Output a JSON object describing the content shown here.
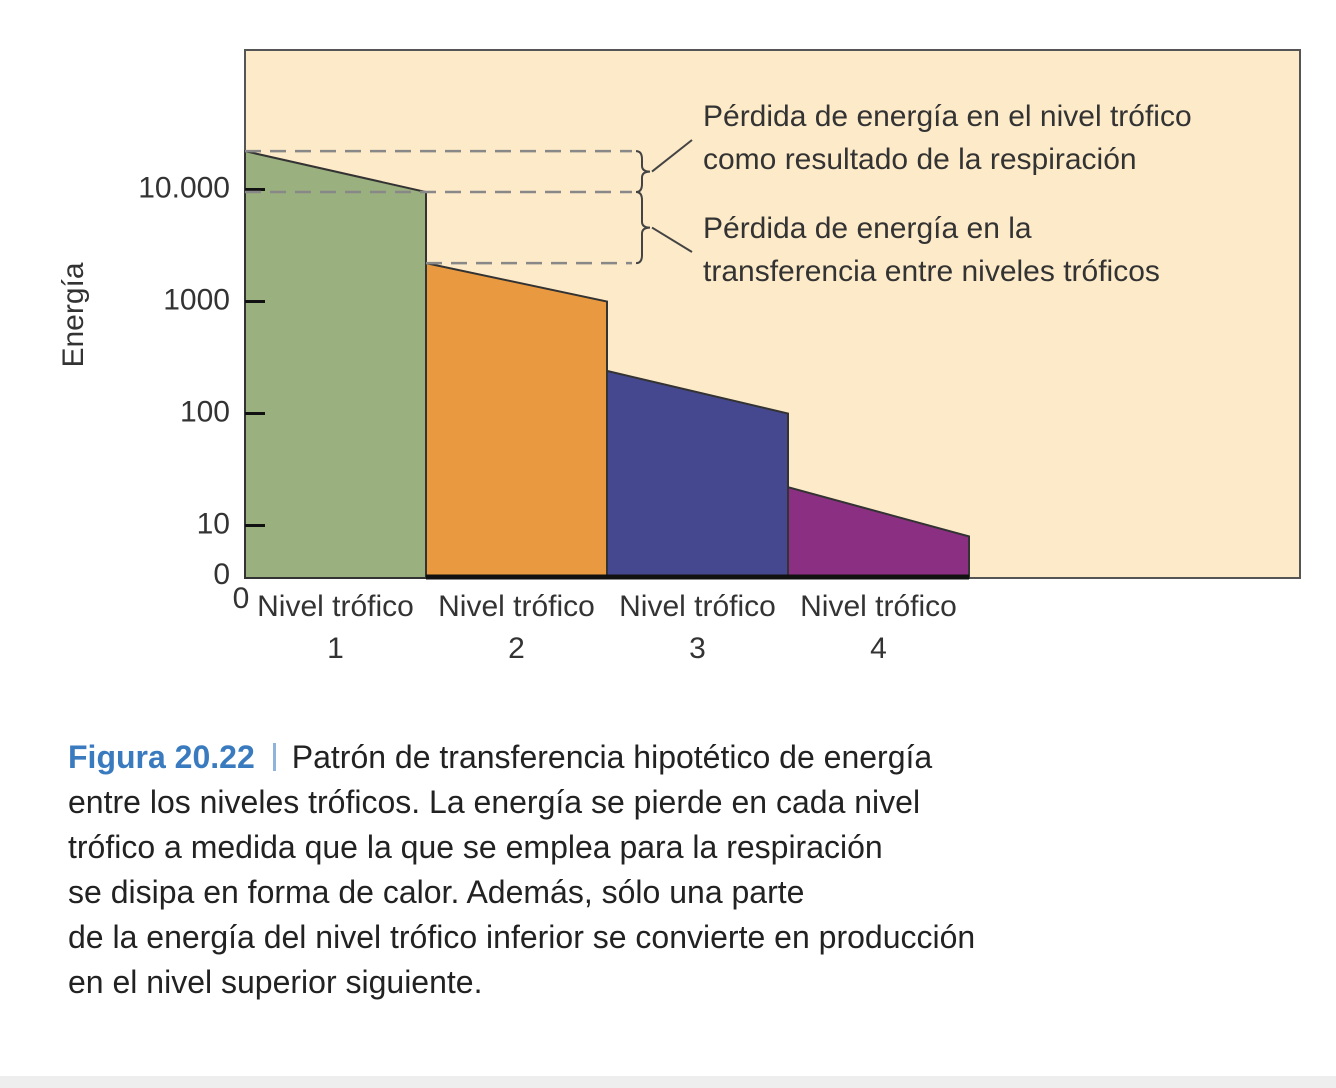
{
  "chart_data": {
    "type": "area-steps",
    "y_label": "Energía",
    "categories": [
      "Nivel trófico 1",
      "Nivel trófico 2",
      "Nivel trófico 3",
      "Nivel trófico 4"
    ],
    "start_values": [
      22000,
      2200,
      240,
      22
    ],
    "end_values": [
      9500,
      1000,
      100,
      8
    ],
    "colors": [
      "#9bb07f",
      "#e99a40",
      "#45478f",
      "#8b2f82"
    ],
    "log_scale": true,
    "ylim": [
      3.4,
      176000
    ],
    "yticks": [
      0,
      10,
      100,
      1000,
      {
        "value": 10000,
        "label": "10.000"
      }
    ],
    "xticks": [
      0
    ],
    "annotations": [
      [
        "Pérdida de energía en el nivel trófico",
        "como resultado de la respiración"
      ],
      [
        "Pérdida de energía en la",
        "transferencia entre niveles tróficos"
      ]
    ]
  },
  "caption": {
    "label": "Figura 20.22",
    "lines": [
      "Patrón de transferencia hipotético de energía",
      "entre los niveles tróficos. La energía se pierde en cada nivel",
      "trófico a medida que la que se emplea para la respiración",
      "se disipa en forma de calor. Además, sólo una parte",
      "de la energía del nivel trófico inferior se convierte en producción",
      "en el nivel superior siguiente."
    ]
  }
}
